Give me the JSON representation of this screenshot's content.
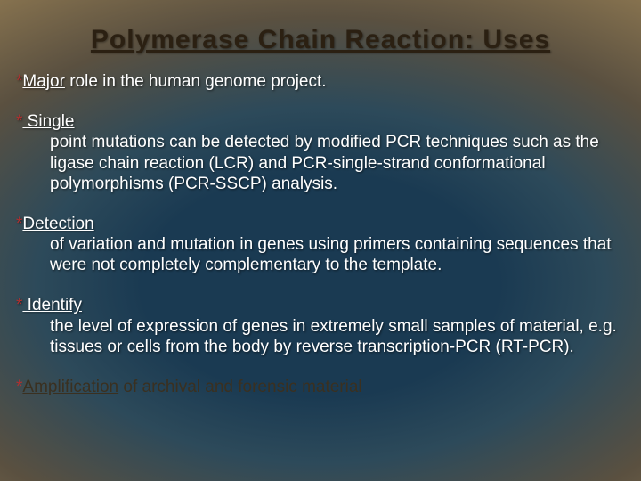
{
  "slide": {
    "title": "Polymerase Chain Reaction: Uses",
    "title_color": "#2b2012",
    "title_fontsize": 30,
    "asterisk_color": "#b03030",
    "text_color": "#ffffff",
    "text_dark_color": "#3a3020",
    "body_fontsize": 19,
    "bullets": [
      {
        "first": "Major",
        "rest": " role in the human genome project.",
        "dark": false
      },
      {
        "first": " Single",
        "rest": " point mutations can be detected by modified PCR techniques such as the ligase chain reaction (LCR) and PCR-single-strand conformational polymorphisms (PCR-SSCP) analysis.",
        "dark": false
      },
      {
        "first": "Detection",
        "rest": " of variation and mutation in genes using primers containing sequences that were not completely complementary to the template.",
        "dark": false
      },
      {
        "first": " Identify",
        "rest": " the level of expression of genes in extremely small samples of material, e.g. tissues or cells from the body by reverse transcription-PCR (RT-PCR).",
        "dark": false
      },
      {
        "first": "Amplification",
        "rest": " of archival and forensic material",
        "dark": true
      }
    ]
  }
}
